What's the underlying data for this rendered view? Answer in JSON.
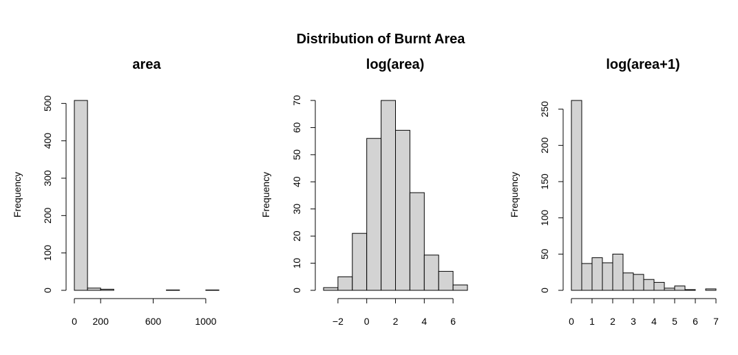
{
  "figure": {
    "title": "Distribution of Burnt Area"
  },
  "chart_data": [
    {
      "type": "bar",
      "title": "area",
      "xlabel": "",
      "ylabel": "Frequency",
      "bin_edges": [
        0,
        100,
        200,
        300,
        400,
        500,
        600,
        700,
        800,
        900,
        1000,
        1100
      ],
      "values": [
        508,
        6,
        3,
        0,
        0,
        0,
        0,
        1,
        0,
        0,
        1
      ],
      "xlim": [
        0,
        1100
      ],
      "ylim": [
        0,
        508
      ],
      "x_ticks": [
        0,
        200,
        600,
        1000
      ],
      "x_tick_labels": [
        "0",
        "200",
        "600",
        "1000"
      ],
      "y_ticks": [
        0,
        100,
        200,
        300,
        400,
        500
      ],
      "y_tick_labels": [
        "0",
        "100",
        "200",
        "300",
        "400",
        "500"
      ]
    },
    {
      "type": "bar",
      "title": "log(area)",
      "xlabel": "",
      "ylabel": "Frequency",
      "bin_edges": [
        -3,
        -2,
        -1,
        0,
        1,
        2,
        3,
        4,
        5,
        6,
        7
      ],
      "values": [
        1,
        5,
        21,
        56,
        70,
        59,
        36,
        13,
        7,
        2
      ],
      "xlim": [
        -3,
        7
      ],
      "ylim": [
        0,
        70
      ],
      "x_ticks": [
        -2,
        0,
        2,
        4,
        6
      ],
      "x_tick_labels": [
        "−2",
        "0",
        "2",
        "4",
        "6"
      ],
      "y_ticks": [
        0,
        10,
        20,
        30,
        40,
        50,
        60,
        70
      ],
      "y_tick_labels": [
        "0",
        "10",
        "20",
        "30",
        "40",
        "50",
        "60",
        "70"
      ]
    },
    {
      "type": "bar",
      "title": "log(area+1)",
      "xlabel": "",
      "ylabel": "Frequency",
      "bin_edges": [
        0,
        0.5,
        1,
        1.5,
        2,
        2.5,
        3,
        3.5,
        4,
        4.5,
        5,
        5.5,
        6,
        6.5,
        7
      ],
      "values": [
        262,
        37,
        45,
        38,
        50,
        24,
        22,
        15,
        11,
        3,
        6,
        1,
        0,
        2
      ],
      "xlim": [
        0,
        7
      ],
      "ylim": [
        0,
        262
      ],
      "x_ticks": [
        0,
        1,
        2,
        3,
        4,
        5,
        6,
        7
      ],
      "x_tick_labels": [
        "0",
        "1",
        "2",
        "3",
        "4",
        "5",
        "6",
        "7"
      ],
      "y_ticks": [
        0,
        50,
        100,
        150,
        200,
        250
      ],
      "y_tick_labels": [
        "0",
        "50",
        "100",
        "150",
        "200",
        "250"
      ]
    }
  ]
}
